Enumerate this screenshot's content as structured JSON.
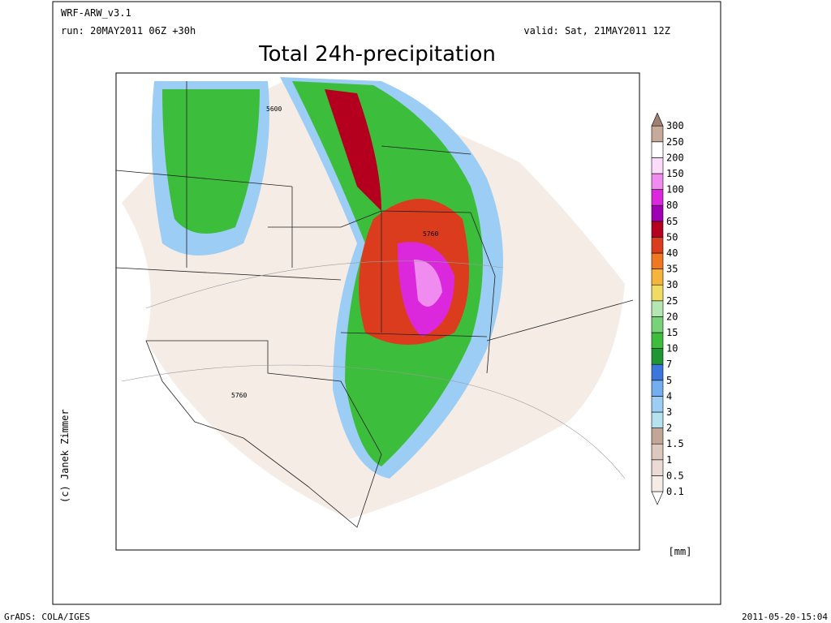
{
  "header": {
    "model": "WRF-ARW_v3.1",
    "run": "run: 20MAY2011 06Z +30h",
    "valid": "valid: Sat, 21MAY2011 12Z",
    "title": "Total 24h-precipitation"
  },
  "map": {
    "contour_labels": [
      "5600",
      "5760",
      "5760"
    ]
  },
  "colorbar": {
    "levels": [
      0.1,
      0.5,
      1,
      1.5,
      2,
      3,
      4,
      5,
      7,
      10,
      15,
      20,
      25,
      30,
      35,
      40,
      50,
      65,
      80,
      100,
      150,
      200,
      250,
      300
    ],
    "colors": [
      "#ffffff",
      "#f6ece6",
      "#eadcd4",
      "#dcc8bc",
      "#c4a696",
      "#b4e2f0",
      "#9ccdf5",
      "#74aef0",
      "#3c78dc",
      "#1e9632",
      "#3cbe3c",
      "#78d278",
      "#b4e6b4",
      "#f0dc64",
      "#f5b43c",
      "#f07820",
      "#dc3c1e",
      "#b4001e",
      "#a000b4",
      "#dc28dc",
      "#f08cf0",
      "#fadcfa",
      "#ffffff",
      "#c8aa9b",
      "#a08070"
    ],
    "unit": "[mm]"
  },
  "credit": "(c) Janek Zimmer",
  "footer": {
    "left": "GrADS: COLA/IGES",
    "right": "2011-05-20-15:04"
  }
}
